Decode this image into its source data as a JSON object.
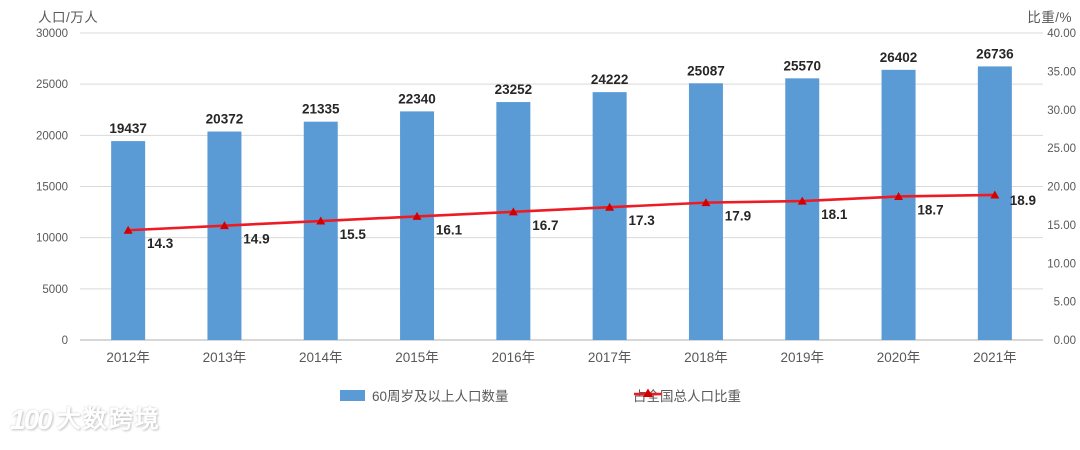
{
  "page": {
    "background": "#ffffff"
  },
  "watermark": {
    "logo": "100-swoosh-logo",
    "logo_text": "100",
    "brand": "大数跨境"
  },
  "legend": {
    "items": [
      {
        "label": "60周岁及以上人口数量",
        "swatch": "blue-bar"
      },
      {
        "label": "占全国总人口比重",
        "swatch": "red-line-triangle"
      }
    ]
  },
  "chart_data": {
    "type": "combo-bar-line",
    "title": "",
    "categories": [
      "2012年",
      "2013年",
      "2014年",
      "2015年",
      "2016年",
      "2017年",
      "2018年",
      "2019年",
      "2020年",
      "2021年"
    ],
    "series": [
      {
        "name": "60周岁及以上人口数量",
        "type": "bar",
        "axis": "left",
        "color": "#5B9BD5",
        "values": [
          19437,
          20372,
          21335,
          22340,
          23252,
          24222,
          25087,
          25570,
          26402,
          26736
        ]
      },
      {
        "name": "占全国总人口比重",
        "type": "line",
        "axis": "right",
        "color": "#ED1C24",
        "marker": "triangle-up",
        "marker_color": "#D40000",
        "values": [
          14.3,
          14.9,
          15.5,
          16.1,
          16.7,
          17.3,
          17.9,
          18.1,
          18.7,
          18.9
        ]
      }
    ],
    "axes": {
      "left": {
        "title": "人口/万人",
        "min": 0,
        "max": 30000,
        "step": 5000,
        "tick_labels": [
          "0",
          "5000",
          "10000",
          "15000",
          "20000",
          "25000",
          "30000"
        ]
      },
      "right": {
        "title": "比重/%",
        "min": 0,
        "max": 40,
        "step": 5,
        "tick_labels": [
          "0.00",
          "5.00",
          "10.00",
          "15.00",
          "20.00",
          "25.00",
          "30.00",
          "35.00",
          "40.00"
        ]
      }
    },
    "grid": "horizontal",
    "legend_position": "bottom",
    "colors": {
      "grid": "#D9D9D9",
      "axis_line": "#BFBFBF",
      "tick_text": "#595959",
      "category_text": "#595959",
      "data_label": "#262626"
    }
  }
}
